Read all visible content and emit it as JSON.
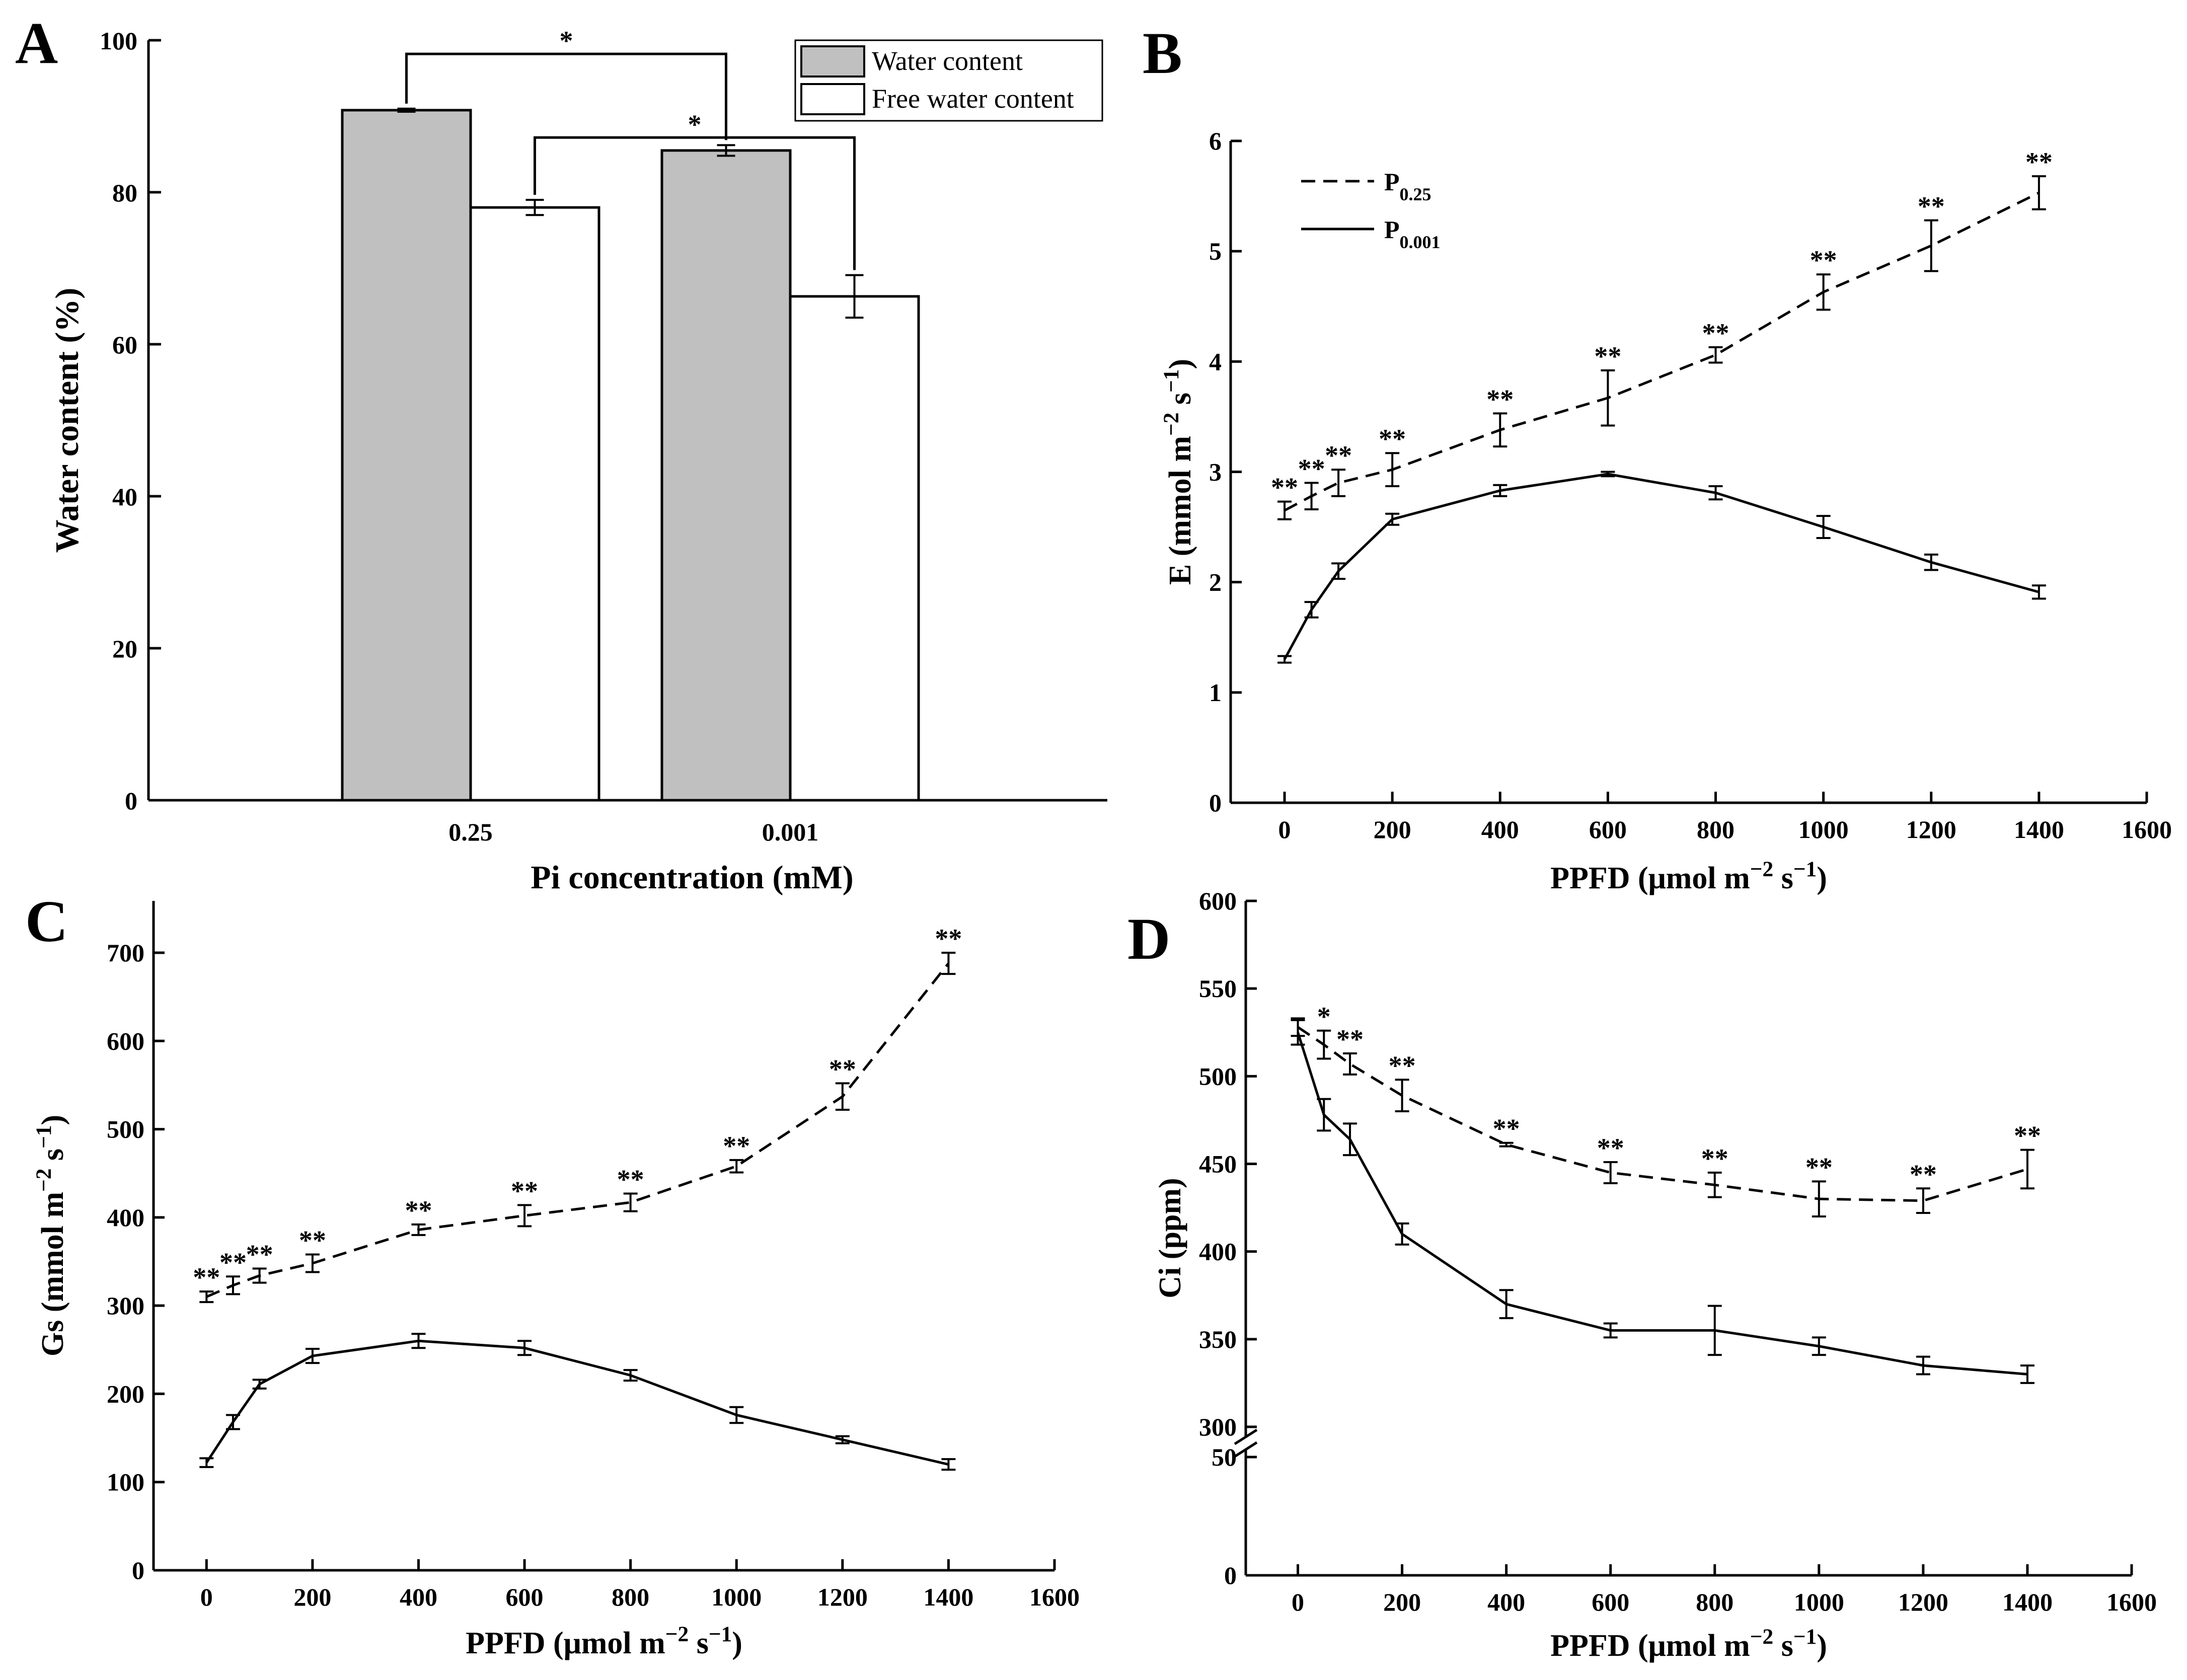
{
  "figure": {
    "panel_letters": [
      "A",
      "B",
      "C",
      "D"
    ]
  },
  "chart_data": [
    {
      "panel": "A",
      "type": "bar",
      "xlabel": "Pi concentration (mM)",
      "ylabel": "Water content (%)",
      "categories": [
        "0.25",
        "0.001"
      ],
      "ylim": [
        0,
        100
      ],
      "yticks": [
        0,
        20,
        40,
        60,
        80,
        100
      ],
      "series": [
        {
          "name": "Water content",
          "color": "#c0c0c0",
          "values": [
            90.8,
            85.5
          ],
          "errors": [
            0.2,
            0.7
          ]
        },
        {
          "name": "Free water content",
          "color": "#ffffff",
          "values": [
            78.0,
            66.3
          ],
          "errors": [
            1.0,
            2.8
          ]
        }
      ],
      "annotations": [
        {
          "label": "*",
          "between": "Water content 0.25 vs 0.001"
        },
        {
          "label": "*",
          "between": "Free water content 0.25 vs 0.001"
        }
      ],
      "legend": "top-right"
    },
    {
      "panel": "B",
      "type": "line",
      "xlabel": "PPFD (μmol m−2 s−1)",
      "ylabel": "E (mmol m−2 s−1)",
      "xlim": [
        -100,
        1600
      ],
      "ylim": [
        0,
        6
      ],
      "xticks": [
        0,
        200,
        400,
        600,
        800,
        1000,
        1200,
        1400,
        1600
      ],
      "yticks": [
        0,
        1,
        2,
        3,
        4,
        5,
        6
      ],
      "x": [
        0,
        50,
        100,
        200,
        400,
        600,
        800,
        1000,
        1200,
        1400
      ],
      "series": [
        {
          "name": "P0.25",
          "style": "dashed",
          "values": [
            2.65,
            2.78,
            2.9,
            3.02,
            3.38,
            3.67,
            4.06,
            4.63,
            5.05,
            5.53
          ],
          "errors": [
            0.08,
            0.12,
            0.12,
            0.15,
            0.15,
            0.25,
            0.07,
            0.16,
            0.23,
            0.15
          ],
          "marks": [
            "**",
            "**",
            "**",
            "**",
            "**",
            "**",
            "**",
            "**",
            "**",
            "**"
          ]
        },
        {
          "name": "P0.001",
          "style": "solid",
          "values": [
            1.3,
            1.75,
            2.1,
            2.57,
            2.83,
            2.98,
            2.81,
            2.5,
            2.18,
            1.91
          ],
          "errors": [
            0.03,
            0.07,
            0.07,
            0.05,
            0.05,
            0.02,
            0.06,
            0.1,
            0.07,
            0.06
          ]
        }
      ],
      "legend_entries": [
        {
          "main": "P",
          "sub": "0.25"
        },
        {
          "main": "P",
          "sub": "0.001"
        }
      ],
      "legend": "top-left"
    },
    {
      "panel": "C",
      "type": "line",
      "xlabel": "PPFD (μmol m−2 s−1)",
      "ylabel": "Gs (mmol m−2 s−1)",
      "xlim": [
        -100,
        1600
      ],
      "ylim": [
        0,
        750
      ],
      "xticks": [
        0,
        200,
        400,
        600,
        800,
        1000,
        1200,
        1400,
        1600
      ],
      "yticks": [
        0,
        100,
        200,
        300,
        400,
        500,
        600,
        700
      ],
      "x": [
        0,
        50,
        100,
        200,
        400,
        600,
        800,
        1000,
        1200,
        1400
      ],
      "series": [
        {
          "name": "P0.25",
          "style": "dashed",
          "values": [
            310,
            323,
            334,
            348,
            386,
            402,
            417,
            458,
            537,
            688
          ],
          "errors": [
            6,
            10,
            8,
            10,
            6,
            12,
            10,
            7,
            15,
            12
          ],
          "marks": [
            "**",
            "**",
            "**",
            "**",
            "**",
            "**",
            "**",
            "**",
            "**",
            "**"
          ]
        },
        {
          "name": "P0.001",
          "style": "solid",
          "values": [
            122,
            168,
            211,
            243,
            260,
            252,
            221,
            176,
            148,
            120
          ],
          "errors": [
            5,
            8,
            5,
            8,
            8,
            8,
            6,
            9,
            4,
            6
          ]
        }
      ]
    },
    {
      "panel": "D",
      "type": "line",
      "xlabel": "PPFD (μmol m−2 s−1)",
      "ylabel": "Ci (ppm)",
      "xlim": [
        -100,
        1600
      ],
      "ylim": [
        0,
        600
      ],
      "axis_break": {
        "lower_range": [
          0,
          50
        ],
        "upper_range": [
          300,
          600
        ]
      },
      "xticks": [
        0,
        200,
        400,
        600,
        800,
        1000,
        1200,
        1400,
        1600
      ],
      "yticks": [
        0,
        50,
        300,
        350,
        400,
        450,
        500,
        550,
        600
      ],
      "x": [
        0,
        50,
        100,
        200,
        400,
        600,
        800,
        1000,
        1200,
        1400
      ],
      "series": [
        {
          "name": "P0.25",
          "style": "dashed",
          "values": [
            528,
            518,
            507,
            489,
            461,
            445,
            438,
            430,
            429,
            447
          ],
          "errors": [
            5,
            8,
            6,
            9,
            1,
            6,
            7,
            10,
            7,
            11
          ],
          "marks": [
            "",
            "*",
            "**",
            "**",
            "**",
            "**",
            "**",
            "**",
            "**",
            "**"
          ]
        },
        {
          "name": "P0.001",
          "style": "solid",
          "values": [
            525,
            478,
            464,
            410,
            370,
            355,
            355,
            346,
            335,
            330
          ],
          "errors": [
            7,
            9,
            9,
            6,
            8,
            4,
            14,
            5,
            5,
            5
          ]
        }
      ]
    }
  ]
}
